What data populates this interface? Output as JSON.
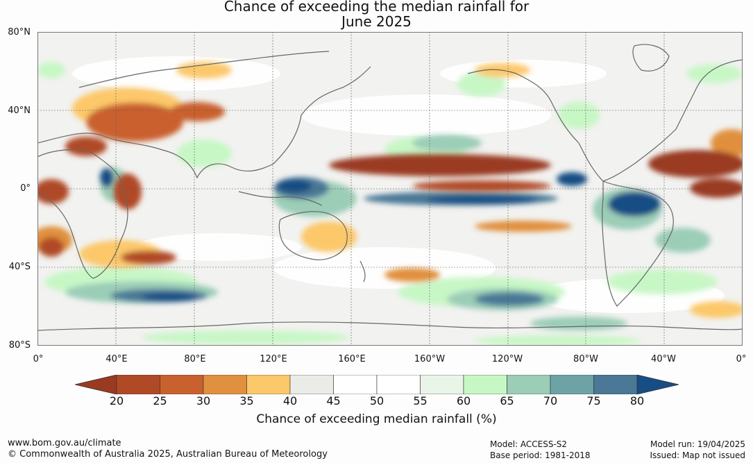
{
  "title": {
    "line1": "Chance of exceeding the median rainfall for",
    "line2": "June 2025"
  },
  "map": {
    "lat_labels": [
      "80°N",
      "40°N",
      "0°",
      "40°S",
      "80°S"
    ],
    "lon_labels": [
      "0°",
      "40°E",
      "80°E",
      "120°E",
      "160°E",
      "160°W",
      "120°W",
      "80°W",
      "40°W",
      "0°"
    ]
  },
  "colorbar": {
    "ticks": [
      "20",
      "25",
      "30",
      "35",
      "40",
      "45",
      "50",
      "55",
      "60",
      "65",
      "70",
      "75",
      "80"
    ],
    "colors": [
      "#9a3a20",
      "#b04a26",
      "#c9612f",
      "#e0903e",
      "#fcc86a",
      "#ebebe7",
      "#ffffff",
      "#ffffff",
      "#e9f5e8",
      "#c8f7c6",
      "#9bcdb7",
      "#6da3a7",
      "#4a7896",
      "#164d84"
    ],
    "label": "Chance of exceeding median rainfall (%)"
  },
  "footer": {
    "url": "www.bom.gov.au/climate",
    "copyright": "© Commonwealth of Australia 2025, Australian Bureau of Meteorology",
    "model": "Model: ACCESS-S2",
    "base_period": "Base period: 1981-2018",
    "model_run": "Model run: 19/04/2025",
    "issued": "Issued: Map not issued"
  }
}
